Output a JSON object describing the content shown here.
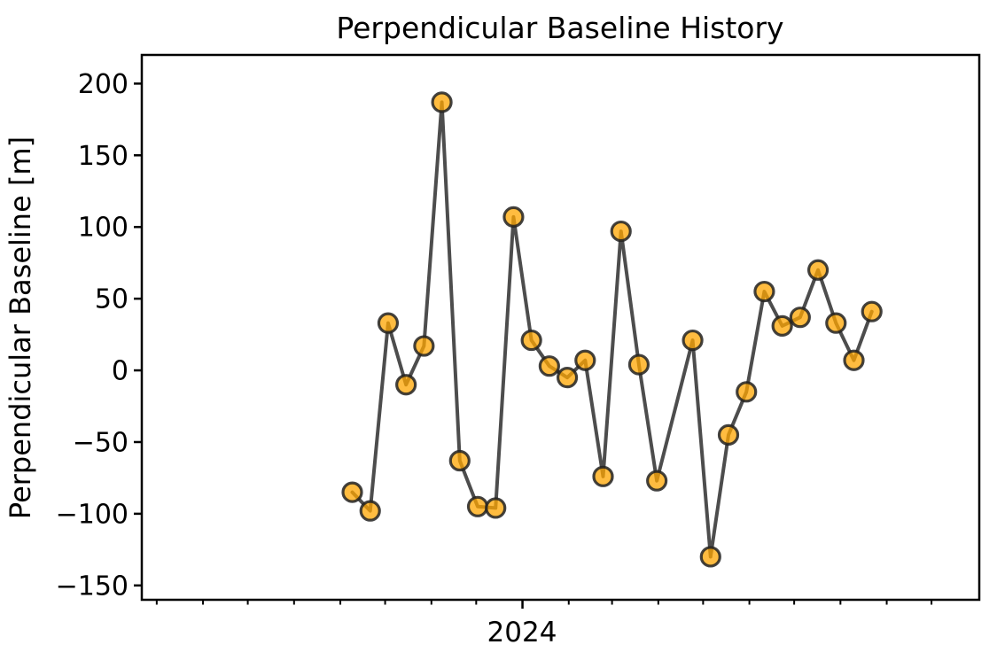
{
  "figure": {
    "background_color": "#ffffff",
    "spine_color": "#000000"
  },
  "chart_data": {
    "type": "line",
    "title": "Perpendicular Baseline History",
    "ylabel": "Perpendicular Baseline [m]",
    "xlabel": "",
    "grid": false,
    "legend": false,
    "x_axis": {
      "major_tick_label": "2024",
      "major_tick_day": 0,
      "minor_tick_days": [
        -245,
        -214,
        -184,
        -153,
        -122,
        -92,
        -61,
        -31,
        0,
        31,
        60,
        91,
        121,
        152,
        182,
        213,
        244,
        274
      ],
      "xlim_days": [
        -255,
        306
      ]
    },
    "y_axis": {
      "ticks": [
        200,
        150,
        100,
        50,
        0,
        -50,
        -100,
        -150
      ],
      "tick_labels": [
        "200",
        "150",
        "100",
        "50",
        "0",
        "−50",
        "−100",
        "−150"
      ],
      "ylim": [
        -160,
        220
      ]
    },
    "series": [
      {
        "name": "perpendicular-baseline",
        "line_color": "#4D4D4D",
        "marker_fill_color": "#FFA500",
        "marker_edge_color": "#222222",
        "x_days": [
          -114,
          -102,
          -90,
          -78,
          -66,
          -54,
          -42,
          -30,
          -18,
          -6,
          6,
          18,
          30,
          42,
          54,
          66,
          78,
          90,
          114,
          126,
          138,
          150,
          162,
          174,
          186,
          198,
          210,
          222,
          234
        ],
        "values": [
          -85,
          -98,
          33,
          -10,
          17,
          187,
          -63,
          -95,
          -96,
          107,
          21,
          3,
          -5,
          7,
          -74,
          97,
          4,
          -77,
          21,
          -130,
          -45,
          -15,
          55,
          31,
          37,
          70,
          33,
          7,
          41
        ]
      }
    ]
  }
}
